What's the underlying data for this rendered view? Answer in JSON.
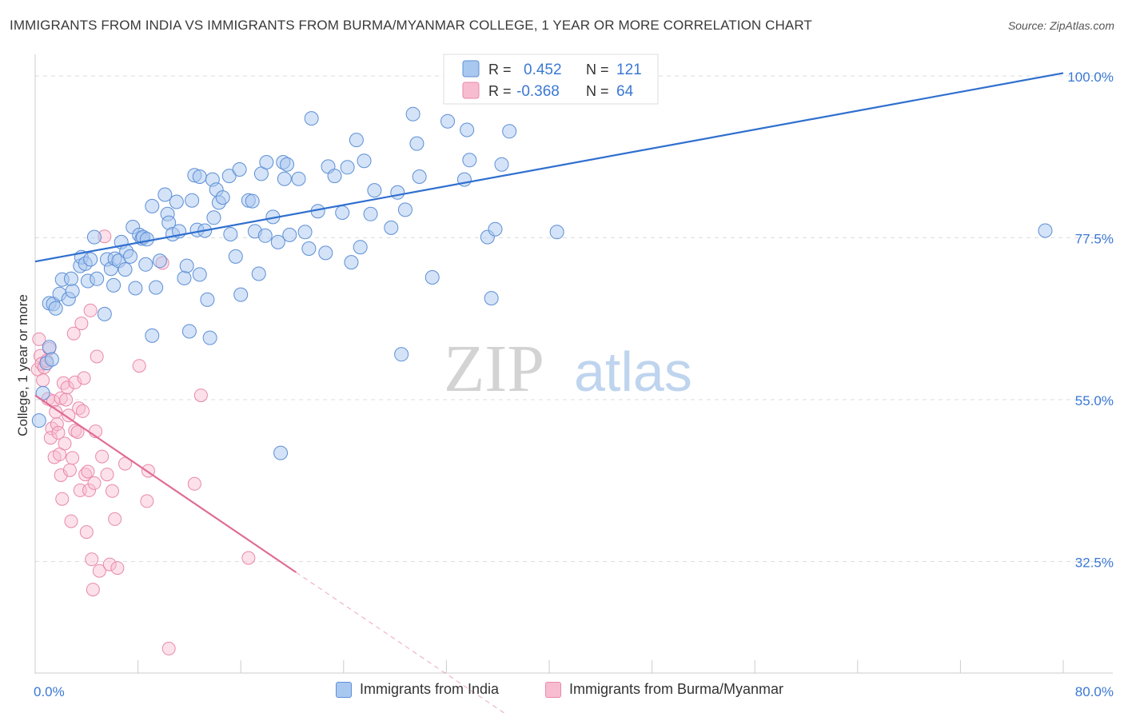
{
  "title": "IMMIGRANTS FROM INDIA VS IMMIGRANTS FROM BURMA/MYANMAR COLLEGE, 1 YEAR OR MORE CORRELATION CHART",
  "source": "Source: ZipAtlas.com",
  "watermark": {
    "zip": "ZIP",
    "atlas": "atlas"
  },
  "colors": {
    "india_fill": "#a9c8f0",
    "india_stroke": "#5d8fd6",
    "india_line": "#2f6fcf",
    "burma_fill": "#f8bcd0",
    "burma_stroke": "#e889a8",
    "burma_line": "#e06b95",
    "value_text": "#3a78d4",
    "grid": "#dddddd"
  },
  "stats_legend": [
    {
      "r_label": "R =",
      "r_value": "0.452",
      "n_label": "N =",
      "n_value": "121"
    },
    {
      "r_label": "R =",
      "r_value": "-0.368",
      "n_label": "N =",
      "n_value": "64"
    }
  ],
  "chart_data": {
    "type": "scatter",
    "title": "IMMIGRANTS FROM INDIA VS IMMIGRANTS FROM BURMA/MYANMAR COLLEGE, 1 YEAR OR MORE CORRELATION CHART",
    "xlabel": "",
    "ylabel": "College, 1 year or more",
    "xlim": [
      0,
      80
    ],
    "ylim": [
      17,
      103
    ],
    "x_tick_labels": [
      {
        "value": 0,
        "label": "0.0%"
      },
      {
        "value": 80,
        "label": "80.0%"
      }
    ],
    "y_tick_labels": [
      {
        "value": 100,
        "label": "100.0%"
      },
      {
        "value": 77.5,
        "label": "77.5%"
      },
      {
        "value": 55,
        "label": "55.0%"
      },
      {
        "value": 32.5,
        "label": "32.5%"
      }
    ],
    "grid": true,
    "legend_position": "bottom-center",
    "series": [
      {
        "name": "Immigrants from India",
        "r": 0.452,
        "n": 121,
        "trend": {
          "x": [
            0,
            80
          ],
          "y": [
            74.2,
            100.4
          ],
          "style": "solid"
        },
        "points": [
          [
            0.3,
            52.1
          ],
          [
            0.6,
            55.9
          ],
          [
            0.9,
            60.1
          ],
          [
            1.1,
            62.3
          ],
          [
            1.3,
            60.6
          ],
          [
            1.1,
            68.4
          ],
          [
            1.4,
            68.3
          ],
          [
            1.6,
            67.7
          ],
          [
            1.9,
            69.7
          ],
          [
            2.1,
            71.7
          ],
          [
            2.6,
            69.0
          ],
          [
            2.9,
            70.1
          ],
          [
            2.8,
            71.8
          ],
          [
            3.5,
            73.6
          ],
          [
            3.6,
            74.8
          ],
          [
            3.9,
            73.9
          ],
          [
            4.1,
            71.5
          ],
          [
            4.3,
            74.5
          ],
          [
            4.6,
            77.6
          ],
          [
            4.8,
            71.8
          ],
          [
            5.4,
            66.9
          ],
          [
            5.6,
            74.5
          ],
          [
            5.9,
            73.2
          ],
          [
            6.1,
            70.9
          ],
          [
            6.2,
            74.6
          ],
          [
            6.5,
            74.3
          ],
          [
            6.7,
            76.9
          ],
          [
            7.0,
            73.1
          ],
          [
            7.1,
            75.6
          ],
          [
            7.4,
            74.9
          ],
          [
            7.8,
            70.5
          ],
          [
            7.6,
            79.0
          ],
          [
            8.1,
            77.9
          ],
          [
            8.3,
            77.4
          ],
          [
            8.4,
            77.6
          ],
          [
            8.6,
            73.8
          ],
          [
            8.7,
            77.3
          ],
          [
            9.1,
            81.9
          ],
          [
            9.4,
            70.6
          ],
          [
            9.1,
            63.9
          ],
          [
            9.7,
            74.3
          ],
          [
            10.1,
            83.5
          ],
          [
            10.3,
            80.8
          ],
          [
            10.4,
            79.6
          ],
          [
            10.7,
            78.0
          ],
          [
            11.0,
            82.5
          ],
          [
            11.2,
            78.4
          ],
          [
            11.6,
            71.9
          ],
          [
            11.8,
            73.6
          ],
          [
            12.0,
            64.5
          ],
          [
            12.4,
            86.2
          ],
          [
            12.2,
            82.7
          ],
          [
            12.8,
            86.0
          ],
          [
            12.6,
            78.6
          ],
          [
            12.8,
            72.4
          ],
          [
            13.2,
            78.5
          ],
          [
            13.4,
            68.9
          ],
          [
            13.6,
            63.6
          ],
          [
            13.8,
            85.6
          ],
          [
            13.9,
            80.3
          ],
          [
            14.1,
            84.2
          ],
          [
            14.3,
            82.4
          ],
          [
            14.6,
            83.1
          ],
          [
            15.1,
            86.1
          ],
          [
            15.2,
            78.0
          ],
          [
            15.6,
            74.9
          ],
          [
            15.9,
            87.0
          ],
          [
            16.0,
            69.6
          ],
          [
            16.6,
            82.7
          ],
          [
            16.9,
            82.6
          ],
          [
            17.1,
            78.4
          ],
          [
            17.4,
            72.5
          ],
          [
            17.6,
            86.4
          ],
          [
            17.9,
            77.8
          ],
          [
            18.0,
            88.0
          ],
          [
            18.5,
            80.4
          ],
          [
            18.9,
            76.9
          ],
          [
            19.3,
            88.0
          ],
          [
            19.4,
            85.7
          ],
          [
            19.6,
            87.7
          ],
          [
            19.1,
            47.6
          ],
          [
            19.8,
            77.9
          ],
          [
            20.5,
            85.7
          ],
          [
            21.0,
            78.3
          ],
          [
            21.3,
            76.0
          ],
          [
            21.5,
            94.1
          ],
          [
            22.0,
            81.2
          ],
          [
            22.8,
            87.4
          ],
          [
            22.6,
            75.4
          ],
          [
            23.3,
            86.1
          ],
          [
            23.9,
            81.0
          ],
          [
            24.3,
            87.3
          ],
          [
            24.6,
            74.1
          ],
          [
            25.0,
            91.1
          ],
          [
            25.3,
            76.2
          ],
          [
            25.6,
            88.2
          ],
          [
            26.4,
            84.1
          ],
          [
            26.1,
            80.8
          ],
          [
            27.7,
            78.9
          ],
          [
            28.2,
            83.8
          ],
          [
            28.5,
            61.3
          ],
          [
            28.8,
            81.4
          ],
          [
            29.4,
            94.7
          ],
          [
            29.7,
            90.6
          ],
          [
            29.9,
            86.0
          ],
          [
            30.9,
            72.0
          ],
          [
            32.1,
            93.7
          ],
          [
            33.4,
            85.6
          ],
          [
            33.6,
            92.5
          ],
          [
            33.8,
            88.3
          ],
          [
            35.2,
            77.6
          ],
          [
            35.5,
            69.1
          ],
          [
            35.8,
            78.7
          ],
          [
            36.3,
            87.7
          ],
          [
            36.9,
            92.3
          ],
          [
            40.6,
            78.3
          ],
          [
            78.6,
            78.5
          ]
        ]
      },
      {
        "name": "Immigrants from Burma/Myanmar",
        "r": -0.368,
        "n": 64,
        "trend": {
          "x": [
            0,
            20.3
          ],
          "y": [
            55.6,
            31.0
          ],
          "style": "solid",
          "dashed_x": [
            20.3,
            37.2
          ],
          "dashed_y": [
            31.0,
            10.6
          ]
        },
        "points": [
          [
            0.2,
            59.2
          ],
          [
            0.3,
            63.4
          ],
          [
            0.4,
            61.1
          ],
          [
            0.5,
            60.0
          ],
          [
            0.6,
            57.7
          ],
          [
            0.7,
            59.5
          ],
          [
            0.9,
            60.4
          ],
          [
            1.0,
            55.1
          ],
          [
            1.1,
            62.1
          ],
          [
            1.3,
            51.0
          ],
          [
            1.4,
            54.8
          ],
          [
            1.2,
            49.7
          ],
          [
            1.5,
            47.0
          ],
          [
            1.6,
            53.3
          ],
          [
            1.7,
            51.6
          ],
          [
            1.8,
            50.4
          ],
          [
            1.9,
            47.4
          ],
          [
            2.0,
            55.2
          ],
          [
            2.0,
            44.5
          ],
          [
            2.1,
            41.2
          ],
          [
            2.2,
            57.3
          ],
          [
            2.3,
            48.9
          ],
          [
            2.4,
            55.0
          ],
          [
            2.5,
            56.7
          ],
          [
            2.6,
            52.8
          ],
          [
            2.7,
            45.2
          ],
          [
            2.8,
            38.1
          ],
          [
            2.9,
            46.9
          ],
          [
            3.0,
            64.2
          ],
          [
            3.1,
            57.4
          ],
          [
            3.1,
            50.7
          ],
          [
            3.3,
            50.5
          ],
          [
            3.4,
            53.8
          ],
          [
            3.5,
            42.4
          ],
          [
            3.6,
            65.6
          ],
          [
            3.7,
            53.4
          ],
          [
            3.8,
            58.0
          ],
          [
            3.9,
            44.6
          ],
          [
            4.0,
            36.6
          ],
          [
            4.1,
            45.0
          ],
          [
            4.2,
            42.4
          ],
          [
            4.3,
            67.4
          ],
          [
            4.4,
            32.8
          ],
          [
            4.5,
            28.6
          ],
          [
            4.6,
            43.4
          ],
          [
            4.7,
            50.6
          ],
          [
            4.8,
            61.0
          ],
          [
            5.0,
            31.2
          ],
          [
            5.2,
            47.1
          ],
          [
            5.4,
            77.7
          ],
          [
            5.6,
            44.6
          ],
          [
            5.8,
            32.1
          ],
          [
            6.0,
            42.3
          ],
          [
            6.2,
            38.4
          ],
          [
            6.4,
            31.6
          ],
          [
            7.0,
            46.1
          ],
          [
            8.1,
            59.7
          ],
          [
            8.7,
            40.9
          ],
          [
            8.8,
            45.1
          ],
          [
            9.9,
            74.0
          ],
          [
            10.4,
            20.4
          ],
          [
            12.4,
            43.3
          ],
          [
            12.9,
            55.6
          ],
          [
            16.6,
            33.0
          ]
        ]
      }
    ]
  },
  "legend": {
    "india_label": "Immigrants from India",
    "burma_label": "Immigrants from Burma/Myanmar"
  }
}
